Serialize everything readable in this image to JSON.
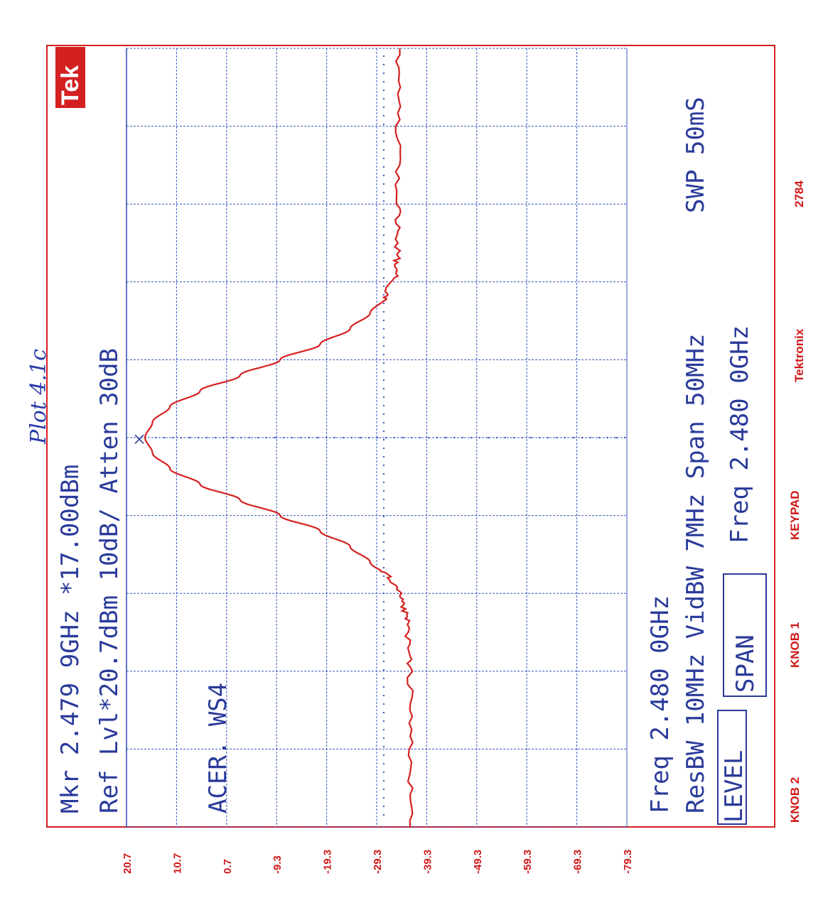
{
  "handwritten_title": "Plot 4.1c",
  "logo": "Tek",
  "brand": "Tektronix",
  "serial": "2784",
  "knob_labels": {
    "knob2": "KNOB 2",
    "knob1": "KNOB 1",
    "keypad": "KEYPAD"
  },
  "readout": {
    "line1": "Mkr   2.479 9GHz          *17.00dBm",
    "line2": "Ref Lvl*20.7dBm       10dB/       Atten 30dB",
    "label": "ACER. WS4",
    "line3": "Freq       2.480 0GHz",
    "line4": "ResBW 10MHz   VidBW 7MHz          Span 50MHz",
    "line5": "Freq   2.480 0GHz",
    "sweep": "SWP 50mS"
  },
  "softkeys": {
    "level": "LEVEL",
    "span": "SPAN"
  },
  "colors": {
    "grid": "#3a55c0",
    "trace": "#d42020",
    "border": "#d42020",
    "text": "#2a3a9a"
  },
  "chart_data": {
    "type": "line",
    "title": "",
    "xlabel": "",
    "ylabel": "",
    "ref_level_dbm": 20.7,
    "db_per_div": 10,
    "divisions": 10,
    "y_tick_labels": [
      "20.7",
      "10.7",
      "0.7",
      "-9.3",
      "-19.3",
      "-29.3",
      "-39.3",
      "-49.3",
      "-59.3",
      "-69.3",
      "-79.3"
    ],
    "ylim": [
      -79.3,
      20.7
    ],
    "center_freq_ghz": 2.48,
    "span_mhz": 50,
    "xlim_mhz_offset": [
      -25,
      25
    ],
    "marker": {
      "freq_ghz": 2.4799,
      "level_dbm": 17.0
    },
    "series": [
      {
        "x": [
          -25,
          -20,
          -15,
          -12,
          -10.5,
          -9,
          -8,
          -7,
          -6,
          -5,
          -4,
          -3,
          -2,
          -1,
          0,
          1,
          2,
          3,
          4,
          5,
          6,
          7,
          8,
          9,
          10.5,
          12,
          15,
          20,
          25
        ],
        "values": [
          -36,
          -36,
          -36,
          -35.5,
          -34.5,
          -32,
          -28,
          -24,
          -18,
          -10,
          -2,
          6,
          12,
          15.5,
          17,
          15.5,
          12,
          6,
          -2,
          -10,
          -18,
          -24,
          -28,
          -31,
          -33,
          -33.5,
          -33.5,
          -33.5,
          -33.5
        ]
      }
    ]
  }
}
